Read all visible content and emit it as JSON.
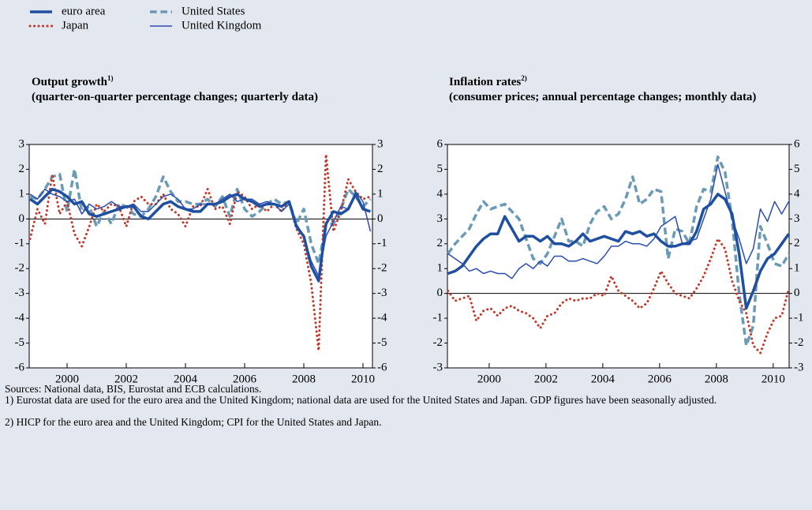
{
  "chart_data": [
    {
      "type": "line",
      "title": "Output growth",
      "title_note": "1)",
      "subtitle": "(quarter-on-quarter percentage changes; quarterly data)",
      "x": [
        1998.75,
        1999,
        1999.25,
        1999.5,
        1999.75,
        2000,
        2000.25,
        2000.5,
        2000.75,
        2001,
        2001.25,
        2001.5,
        2001.75,
        2002,
        2002.25,
        2002.5,
        2002.75,
        2003,
        2003.25,
        2003.5,
        2003.75,
        2004,
        2004.25,
        2004.5,
        2004.75,
        2005,
        2005.25,
        2005.5,
        2005.75,
        2006,
        2006.25,
        2006.5,
        2006.75,
        2007,
        2007.25,
        2007.5,
        2007.75,
        2008,
        2008.25,
        2008.5,
        2008.75,
        2009,
        2009.25,
        2009.5,
        2009.75,
        2010,
        2010.25
      ],
      "xlim": [
        1998.72,
        2010.32
      ],
      "xticks": [
        2000,
        2002,
        2004,
        2006,
        2008,
        2010
      ],
      "ylim": [
        -6,
        3
      ],
      "yticks": [
        -6,
        -5,
        -4,
        -3,
        -2,
        -1,
        0,
        1,
        2,
        3
      ],
      "series": [
        {
          "name": "euro area",
          "color": "#1f4fa0",
          "width": 3.5,
          "dash": "solid",
          "values": [
            0.8,
            0.6,
            0.9,
            1.2,
            1.1,
            0.9,
            0.6,
            0.7,
            0.2,
            0.1,
            0.2,
            0.3,
            0.4,
            0.5,
            0.5,
            0.1,
            0.0,
            0.3,
            0.6,
            0.7,
            0.5,
            0.4,
            0.3,
            0.3,
            0.6,
            0.6,
            0.7,
            0.9,
            1.0,
            0.8,
            0.7,
            0.5,
            0.6,
            0.6,
            0.5,
            0.7,
            -0.3,
            -0.7,
            -1.9,
            -2.5,
            -0.2,
            0.3,
            0.2,
            0.4,
            1.0,
            0.4,
            0.3
          ]
        },
        {
          "name": "Japan",
          "color": "#c0392b",
          "width": 3,
          "dash": "dotted",
          "values": [
            -0.8,
            0.4,
            -0.2,
            1.8,
            0.2,
            0.7,
            -0.6,
            -1.1,
            -0.3,
            0.6,
            0.3,
            0.6,
            0.5,
            -0.3,
            0.7,
            0.9,
            0.6,
            0.6,
            1.0,
            0.4,
            0.2,
            -0.3,
            0.5,
            0.5,
            1.2,
            0.4,
            0.5,
            -0.2,
            1.1,
            0.9,
            0.4,
            0.6,
            0.3,
            0.6,
            0.3,
            0.7,
            -0.4,
            -1.0,
            -2.6,
            -5.3,
            2.6,
            -0.5,
            0.3,
            1.6,
            1.1,
            0.8,
            0.9
          ]
        },
        {
          "name": "United States",
          "color": "#6a9ab6",
          "width": 3.5,
          "dash": "dashed",
          "values": [
            0.9,
            0.8,
            1.2,
            1.7,
            1.8,
            0.3,
            2.0,
            0.3,
            0.5,
            -0.3,
            0.3,
            -0.2,
            0.6,
            0.5,
            0.2,
            0.1,
            0.4,
            0.9,
            1.7,
            1.1,
            0.7,
            0.7,
            0.6,
            0.6,
            0.8,
            0.5,
            0.9,
            0.1,
            1.2,
            0.4,
            0.1,
            0.3,
            0.6,
            0.8,
            0.6,
            0.7,
            -0.2,
            0.4,
            -1.0,
            -1.8,
            -0.2,
            -0.2,
            0.4,
            1.2,
            0.9,
            0.5,
            0.8
          ]
        },
        {
          "name": "United Kingdom",
          "color": "#2a4db0",
          "width": 1.5,
          "dash": "solid",
          "values": [
            1.0,
            0.8,
            1.2,
            1.0,
            0.9,
            0.7,
            0.8,
            0.2,
            0.6,
            0.4,
            0.5,
            0.7,
            0.5,
            0.5,
            0.6,
            0.3,
            0.3,
            0.6,
            0.9,
            1.0,
            0.8,
            0.4,
            0.4,
            0.6,
            0.6,
            0.6,
            0.8,
            1.0,
            0.7,
            0.8,
            0.8,
            0.6,
            0.7,
            0.6,
            0.3,
            0.6,
            -0.2,
            -0.7,
            -1.7,
            -2.3,
            -0.7,
            -0.1,
            0.5,
            0.4,
            1.1,
            0.7,
            -0.5
          ]
        }
      ]
    },
    {
      "type": "line",
      "title": "Inflation rates",
      "title_note": "2)",
      "subtitle": "(consumer prices; annual percentage changes; monthly data)",
      "x": [
        1998.55,
        1998.8,
        1999.05,
        1999.3,
        1999.55,
        1999.8,
        2000.05,
        2000.3,
        2000.55,
        2000.8,
        2001.05,
        2001.3,
        2001.55,
        2001.8,
        2002.05,
        2002.3,
        2002.55,
        2002.8,
        2003.05,
        2003.3,
        2003.55,
        2003.8,
        2004.05,
        2004.3,
        2004.55,
        2004.8,
        2005.05,
        2005.3,
        2005.55,
        2005.8,
        2006.05,
        2006.3,
        2006.55,
        2006.8,
        2007.05,
        2007.3,
        2007.55,
        2007.8,
        2008.05,
        2008.3,
        2008.55,
        2008.8,
        2009.05,
        2009.3,
        2009.55,
        2009.8,
        2010.05,
        2010.3,
        2010.55
      ],
      "xlim": [
        1998.53,
        2010.56
      ],
      "xticks": [
        2000,
        2002,
        2004,
        2006,
        2008,
        2010
      ],
      "ylim": [
        -3,
        6
      ],
      "yticks": [
        -3,
        -2,
        -1,
        0,
        1,
        2,
        3,
        4,
        5,
        6
      ],
      "series": [
        {
          "color": "#1f4fa0",
          "width": 3.5,
          "dash": "solid",
          "values": [
            0.8,
            0.9,
            1.1,
            1.5,
            1.9,
            2.2,
            2.4,
            2.4,
            3.1,
            2.6,
            2.1,
            2.3,
            2.3,
            2.1,
            2.3,
            2.0,
            2.0,
            1.9,
            2.1,
            2.4,
            2.1,
            2.2,
            2.3,
            2.2,
            2.1,
            2.5,
            2.4,
            2.5,
            2.3,
            2.4,
            2.1,
            1.9,
            1.9,
            2.0,
            2.0,
            2.5,
            3.4,
            3.6,
            4.0,
            3.8,
            3.2,
            1.6,
            -0.6,
            0.1,
            0.9,
            1.4,
            1.6,
            2.0,
            2.4
          ]
        },
        {
          "color": "#c0392b",
          "width": 3,
          "dash": "dotted",
          "values": [
            0.1,
            -0.3,
            -0.2,
            -0.1,
            -1.1,
            -0.7,
            -0.6,
            -0.9,
            -0.6,
            -0.5,
            -0.7,
            -0.8,
            -1.0,
            -1.4,
            -0.9,
            -0.8,
            -0.4,
            -0.2,
            -0.3,
            -0.2,
            -0.2,
            0.0,
            -0.1,
            0.7,
            0.1,
            -0.1,
            -0.3,
            -0.6,
            -0.4,
            0.2,
            0.9,
            0.4,
            0.0,
            -0.1,
            -0.2,
            0.2,
            0.7,
            1.4,
            2.2,
            1.8,
            0.5,
            -0.3,
            -0.8,
            -2.1,
            -2.4,
            -1.6,
            -1.0,
            -0.9,
            0.2
          ]
        },
        {
          "color": "#6a9ab6",
          "width": 3.5,
          "dash": "dashed",
          "values": [
            1.6,
            2.0,
            2.3,
            2.6,
            3.2,
            3.7,
            3.4,
            3.5,
            3.6,
            3.3,
            3.0,
            2.2,
            1.4,
            1.2,
            1.6,
            2.3,
            3.0,
            2.1,
            2.1,
            1.9,
            2.8,
            3.3,
            3.5,
            3.0,
            3.2,
            3.8,
            4.7,
            3.6,
            3.8,
            4.2,
            4.1,
            1.4,
            2.6,
            2.5,
            2.0,
            3.5,
            4.2,
            4.1,
            5.5,
            4.9,
            3.0,
            0.0,
            -2.1,
            -1.3,
            2.7,
            2.0,
            1.2,
            1.1,
            1.6
          ]
        },
        {
          "color": "#2a4db0",
          "width": 1.5,
          "dash": "solid",
          "values": [
            1.6,
            1.4,
            1.2,
            0.9,
            1.0,
            0.8,
            0.9,
            0.8,
            0.8,
            0.6,
            1.0,
            1.2,
            1.0,
            1.3,
            1.1,
            1.5,
            1.5,
            1.3,
            1.3,
            1.4,
            1.3,
            1.2,
            1.5,
            1.9,
            1.9,
            2.1,
            2.0,
            2.0,
            1.9,
            2.2,
            2.7,
            2.9,
            3.1,
            2.0,
            2.1,
            2.2,
            3.0,
            3.8,
            5.2,
            4.1,
            3.0,
            2.2,
            1.2,
            1.8,
            3.4,
            2.9,
            3.7,
            3.2,
            3.7
          ]
        }
      ]
    }
  ],
  "notes": {
    "sources": "Sources: National data, BIS, Eurostat and ECB calculations.",
    "note1": "1) Eurostat data are used for the euro area and the United Kingdom; national data are used for the United States and Japan. GDP figures have been seasonally adjusted.",
    "note2": "2) HICP for the euro area and the United Kingdom; CPI for the United States and Japan."
  }
}
